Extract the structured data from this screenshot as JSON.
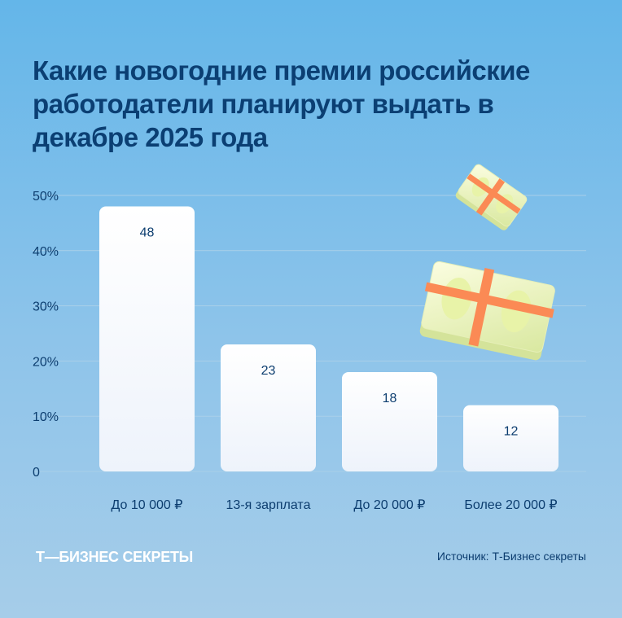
{
  "title": "Какие новогодние премии российские работодатели планируют выдать в декабре 2025 года",
  "brand": "Т—БИЗНЕС СЕКРЕТЫ",
  "source": "Источник: Т-Бизнес секреты",
  "chart_data": {
    "type": "bar",
    "title": "Какие новогодние премии российские работодатели планируют выдать в декабре 2025 года",
    "categories": [
      "До 10 000 ₽",
      "13-я зарплата",
      "До 20 000 ₽",
      "Более 20 000 ₽"
    ],
    "values": [
      48,
      23,
      18,
      12
    ],
    "ylim": [
      0,
      50
    ],
    "yticks": [
      "0",
      "10%",
      "20%",
      "30%",
      "40%",
      "50%"
    ],
    "grid": true,
    "colors": {
      "bar": "#ffffff",
      "text": "#0c3d6f",
      "grid": "#a9cfe9"
    }
  }
}
